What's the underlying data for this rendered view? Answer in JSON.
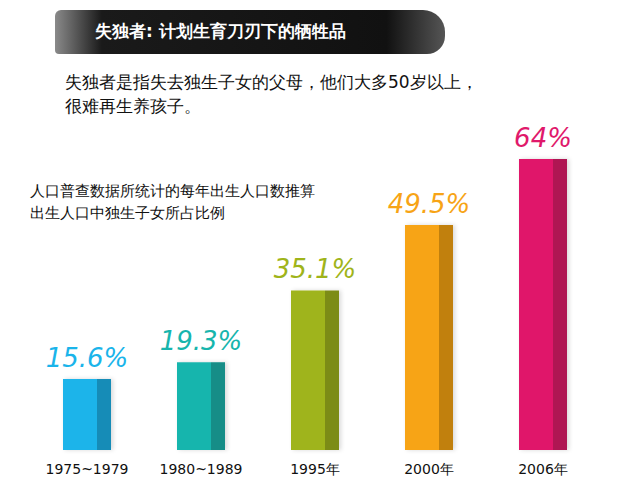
{
  "chart_data": {
    "type": "bar",
    "title": "失独者: 计划生育刀刃下的牺牲品",
    "subtitle": "失独者是指失去独生子女的父母，他们大多50岁以上，很难再生养孩子。",
    "annotation": "人口普查数据所统计的每年出生人口数推算出生人口中独生子女所占比例",
    "categories": [
      "1975~1979",
      "1980~1989",
      "1995年",
      "2000年",
      "2006年"
    ],
    "values": [
      15.6,
      19.3,
      35.1,
      49.5,
      64
    ],
    "value_labels": [
      "15.6%",
      "19.3%",
      "35.1%",
      "49.5%",
      "64%"
    ],
    "colors": [
      "#1ab4ea",
      "#17b5ad",
      "#9fb41a",
      "#f7a416",
      "#e0196b"
    ],
    "ylim": [
      0,
      66
    ],
    "grid": false,
    "data_labels": true,
    "tick_labels": "x"
  }
}
